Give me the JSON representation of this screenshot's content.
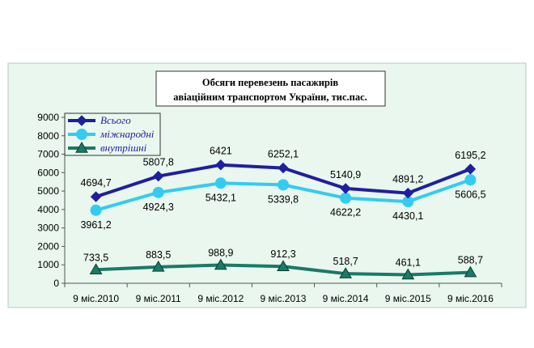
{
  "chart_data": {
    "type": "line",
    "title_lines": [
      "Обсяги перевезень пасажирів",
      "авіаційним транспортом України, тис.пас."
    ],
    "categories": [
      "9 міс.2010",
      "9 міс.2011",
      "9 міс.2012",
      "9 міс.2013",
      "9 міс.2014",
      "9 міс.2015",
      "9 міс.2016"
    ],
    "ylim": [
      0,
      9000
    ],
    "yticks": [
      "0",
      "1000",
      "2000",
      "3000",
      "4000",
      "5000",
      "6000",
      "7000",
      "8000",
      "9000"
    ],
    "grid": false,
    "legend_position": "top-left",
    "series": [
      {
        "name": "Всього",
        "values": [
          4694.7,
          5807.8,
          6421,
          6252.1,
          5140.9,
          4891.2,
          6195.2
        ],
        "labels": [
          "4694,7",
          "5807,8",
          "6421",
          "6252,1",
          "5140,9",
          "4891,2",
          "6195,2"
        ],
        "color": "#1f1fa0",
        "marker": "diamond"
      },
      {
        "name": "міжнародні",
        "values": [
          3961.2,
          4924.3,
          5432.1,
          5339.8,
          4622.2,
          4430.1,
          5606.5
        ],
        "labels": [
          "3961,2",
          "4924,3",
          "5432,1",
          "5339,8",
          "4622,2",
          "4430,1",
          "5606,5"
        ],
        "color": "#33ccf0",
        "marker": "circle"
      },
      {
        "name": "внутрішні",
        "values": [
          733.5,
          883.5,
          988.9,
          912.3,
          518.7,
          461.1,
          588.7
        ],
        "labels": [
          "733,5",
          "883,5",
          "988,9",
          "912,3",
          "518,7",
          "461,1",
          "588,7"
        ],
        "color": "#1a7a66",
        "marker": "triangle"
      }
    ],
    "colors": {
      "plot_background": "#e9f7ef",
      "title_background": "#ffffff",
      "axis": "#555555"
    }
  }
}
